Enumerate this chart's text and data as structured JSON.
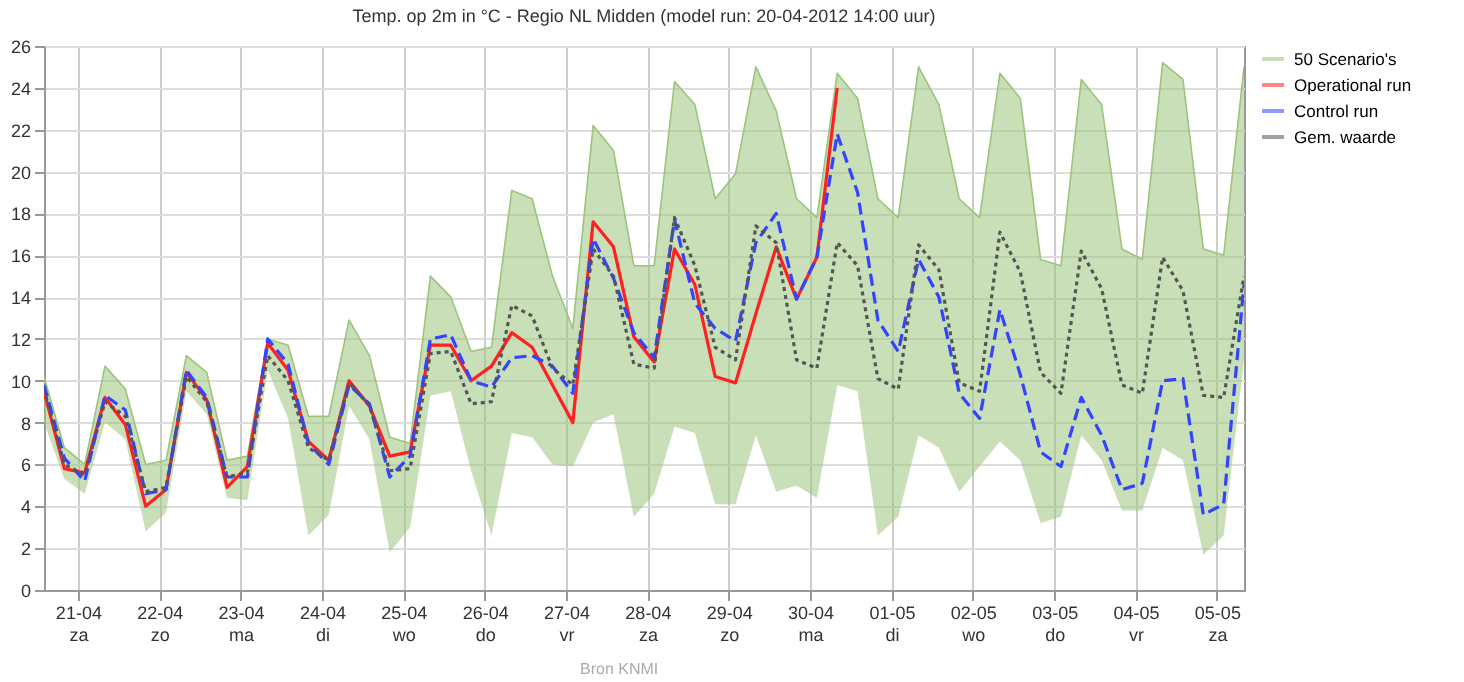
{
  "chart_data": {
    "type": "line",
    "title": "Temp. op 2m in °C - Regio NL Midden (model run: 20-04-2012 14:00 uur)",
    "annotations": [
      "Bron KNMI"
    ],
    "x": [
      "2012-04-20T14:00",
      "2012-04-20T20:00",
      "2012-04-21T02:00",
      "2012-04-21T08:00",
      "2012-04-21T14:00",
      "2012-04-21T20:00",
      "2012-04-22T02:00",
      "2012-04-22T08:00",
      "2012-04-22T14:00",
      "2012-04-22T20:00",
      "2012-04-23T02:00",
      "2012-04-23T08:00",
      "2012-04-23T14:00",
      "2012-04-23T20:00",
      "2012-04-24T02:00",
      "2012-04-24T08:00",
      "2012-04-24T14:00",
      "2012-04-24T20:00",
      "2012-04-25T02:00",
      "2012-04-25T08:00",
      "2012-04-25T14:00",
      "2012-04-25T20:00",
      "2012-04-26T02:00",
      "2012-04-26T08:00",
      "2012-04-26T14:00",
      "2012-04-26T20:00",
      "2012-04-27T02:00",
      "2012-04-27T08:00",
      "2012-04-27T14:00",
      "2012-04-27T20:00",
      "2012-04-28T02:00",
      "2012-04-28T08:00",
      "2012-04-28T14:00",
      "2012-04-28T20:00",
      "2012-04-29T02:00",
      "2012-04-29T08:00",
      "2012-04-29T14:00",
      "2012-04-29T20:00",
      "2012-04-30T02:00",
      "2012-04-30T08:00",
      "2012-04-30T14:00",
      "2012-04-30T20:00",
      "2012-05-01T02:00",
      "2012-05-01T08:00",
      "2012-05-01T14:00",
      "2012-05-01T20:00",
      "2012-05-02T02:00",
      "2012-05-02T08:00",
      "2012-05-02T14:00",
      "2012-05-02T20:00",
      "2012-05-03T02:00",
      "2012-05-03T08:00",
      "2012-05-03T14:00",
      "2012-05-03T20:00",
      "2012-05-04T02:00",
      "2012-05-04T08:00",
      "2012-05-04T14:00",
      "2012-05-04T20:00",
      "2012-05-05T02:00",
      "2012-05-05T08:00"
    ],
    "series": [
      {
        "name": "50 Scenario's",
        "color": "#9cc47c",
        "values": [
          10.2,
          6.8,
          6.0,
          10.7,
          9.6,
          6.0,
          6.2,
          11.2,
          10.4,
          6.2,
          6.4,
          12.0,
          11.7,
          8.3,
          8.3,
          12.9,
          11.2,
          7.3,
          7.0,
          15.0,
          14.0,
          11.4,
          11.6,
          19.1,
          18.7,
          15.0,
          12.5,
          22.2,
          21.0,
          15.5,
          15.5,
          24.3,
          23.2,
          18.7,
          19.9,
          25.0,
          22.9,
          18.7,
          17.8,
          24.7,
          23.5,
          18.7,
          17.8,
          25.0,
          23.2,
          18.7,
          17.8,
          24.7,
          23.5,
          15.8,
          15.5,
          24.4,
          23.2,
          16.3,
          15.8,
          25.2,
          24.4,
          16.3,
          16.0,
          25.0
        ],
        "lower": [
          8.0,
          5.3,
          4.6,
          8.0,
          7.2,
          2.8,
          3.7,
          9.5,
          8.4,
          4.4,
          4.3,
          10.5,
          8.2,
          2.6,
          3.6,
          8.8,
          7.2,
          1.8,
          3.0,
          9.3,
          9.5,
          5.7,
          2.6,
          7.5,
          7.3,
          6.0,
          5.9,
          8.0,
          8.4,
          3.5,
          4.6,
          7.8,
          7.5,
          4.1,
          4.1,
          7.4,
          4.7,
          5.0,
          4.4,
          9.8,
          9.5,
          2.6,
          3.5,
          7.4,
          6.8,
          4.7,
          5.9,
          7.1,
          6.2,
          3.2,
          3.5,
          7.4,
          6.2,
          3.8,
          3.8,
          6.8,
          6.2,
          1.7,
          2.6,
          11.0
        ],
        "upper": [
          10.2,
          6.8,
          6.0,
          10.7,
          9.6,
          6.0,
          6.2,
          11.2,
          10.4,
          6.2,
          6.4,
          12.0,
          11.7,
          8.3,
          8.3,
          12.9,
          11.2,
          7.3,
          7.0,
          15.0,
          14.0,
          11.4,
          11.6,
          19.1,
          18.7,
          15.0,
          12.5,
          22.2,
          21.0,
          15.5,
          15.5,
          24.3,
          23.2,
          18.7,
          19.9,
          25.0,
          22.9,
          18.7,
          17.8,
          24.7,
          23.5,
          18.7,
          17.8,
          25.0,
          23.2,
          18.7,
          17.8,
          24.7,
          23.5,
          15.8,
          15.5,
          24.4,
          23.2,
          16.3,
          15.8,
          25.2,
          24.4,
          16.3,
          16.0,
          25.0
        ]
      },
      {
        "name": "Operational run",
        "color": "#ff2020",
        "line_style": "solid",
        "x": [
          "2012-04-20T14:00",
          "2012-04-20T20:00",
          "2012-04-21T02:00",
          "2012-04-21T08:00",
          "2012-04-21T14:00",
          "2012-04-21T20:00",
          "2012-04-22T02:00",
          "2012-04-22T08:00",
          "2012-04-22T14:00",
          "2012-04-22T20:00",
          "2012-04-23T02:00",
          "2012-04-23T08:00",
          "2012-04-23T14:00",
          "2012-04-23T20:00",
          "2012-04-24T02:00",
          "2012-04-24T08:00",
          "2012-04-24T14:00",
          "2012-04-24T20:00",
          "2012-04-25T02:00",
          "2012-04-25T08:00",
          "2012-04-25T14:00",
          "2012-04-25T20:00",
          "2012-04-26T02:00",
          "2012-04-26T08:00",
          "2012-04-26T14:00",
          "2012-04-26T20:00",
          "2012-04-27T02:00",
          "2012-04-27T08:00",
          "2012-04-27T14:00",
          "2012-04-27T20:00",
          "2012-04-28T02:00",
          "2012-04-28T08:00",
          "2012-04-28T14:00",
          "2012-04-28T20:00",
          "2012-04-29T02:00",
          "2012-04-29T08:00",
          "2012-04-29T14:00",
          "2012-04-29T20:00",
          "2012-04-30T02:00",
          "2012-04-30T08:00"
        ],
        "values": [
          9.5,
          5.8,
          5.6,
          9.2,
          7.9,
          4.0,
          4.8,
          10.4,
          9.1,
          4.9,
          5.9,
          11.8,
          10.5,
          7.1,
          6.2,
          10.0,
          8.8,
          6.4,
          6.6,
          11.7,
          11.7,
          10.0,
          10.7,
          12.3,
          11.6,
          9.8,
          8.0,
          17.6,
          16.4,
          12.1,
          10.9,
          16.3,
          14.6,
          10.2,
          9.9,
          13.2,
          16.4,
          13.9,
          15.9,
          24.0
        ]
      },
      {
        "name": "Control run",
        "color": "#3344ff",
        "line_style": "dashed",
        "values": [
          9.8,
          6.3,
          5.2,
          9.3,
          8.6,
          4.6,
          4.8,
          10.5,
          9.2,
          5.4,
          5.4,
          12.0,
          10.8,
          7.0,
          6.0,
          9.8,
          8.9,
          5.4,
          6.4,
          12.0,
          12.2,
          10.0,
          9.7,
          11.1,
          11.2,
          10.7,
          9.4,
          16.8,
          14.9,
          12.3,
          11.1,
          17.7,
          13.7,
          12.5,
          11.9,
          16.6,
          18.0,
          13.9,
          15.9,
          21.8,
          19.0,
          12.9,
          11.4,
          15.8,
          14.0,
          9.4,
          8.2,
          13.4,
          10.3,
          6.6,
          5.9,
          9.2,
          7.4,
          4.8,
          5.1,
          10.0,
          10.1,
          3.6,
          4.1,
          14.6
        ]
      },
      {
        "name": "Gem. waarde",
        "color": "#555555",
        "line_style": "dotted",
        "values": [
          9.6,
          6.0,
          5.5,
          9.0,
          8.3,
          4.7,
          4.9,
          10.2,
          9.0,
          5.4,
          5.6,
          11.2,
          10.0,
          6.8,
          6.2,
          9.9,
          8.8,
          5.7,
          5.8,
          11.3,
          11.4,
          8.9,
          9.0,
          13.6,
          13.1,
          10.6,
          9.8,
          16.3,
          15.0,
          10.8,
          10.6,
          17.8,
          15.5,
          11.6,
          11.0,
          17.4,
          16.6,
          11.0,
          10.6,
          16.6,
          15.5,
          10.1,
          9.6,
          16.5,
          15.3,
          9.9,
          9.5,
          17.1,
          15.2,
          10.4,
          9.4,
          16.2,
          14.4,
          9.8,
          9.4,
          15.9,
          14.3,
          9.3,
          9.2,
          15.0
        ]
      }
    ],
    "xlim": [
      "2012-04-20T14:00",
      "2012-05-05T08:00"
    ],
    "xticks": [
      {
        "value": "2012-04-21T00:00",
        "label": "21-04 za"
      },
      {
        "value": "2012-04-22T00:00",
        "label": "22-04 zo"
      },
      {
        "value": "2012-04-23T00:00",
        "label": "23-04 ma"
      },
      {
        "value": "2012-04-24T00:00",
        "label": "24-04 di"
      },
      {
        "value": "2012-04-25T00:00",
        "label": "25-04 wo"
      },
      {
        "value": "2012-04-26T00:00",
        "label": "26-04 do"
      },
      {
        "value": "2012-04-27T00:00",
        "label": "27-04 vr"
      },
      {
        "value": "2012-04-28T00:00",
        "label": "28-04 za"
      },
      {
        "value": "2012-04-29T00:00",
        "label": "29-04 zo"
      },
      {
        "value": "2012-04-30T00:00",
        "label": "30-04 ma"
      },
      {
        "value": "2012-05-01T00:00",
        "label": "01-05 di"
      },
      {
        "value": "2012-05-02T00:00",
        "label": "02-05 wo"
      },
      {
        "value": "2012-05-03T00:00",
        "label": "03-05 do"
      },
      {
        "value": "2012-05-04T00:00",
        "label": "04-05 vr"
      },
      {
        "value": "2012-05-05T00:00",
        "label": "05-05 za"
      }
    ],
    "ylim": [
      0,
      26
    ],
    "yticks": [
      0,
      2,
      4,
      6,
      8,
      10,
      12,
      14,
      16,
      18,
      20,
      22,
      24,
      26
    ],
    "grid": true,
    "legend": "top right"
  }
}
